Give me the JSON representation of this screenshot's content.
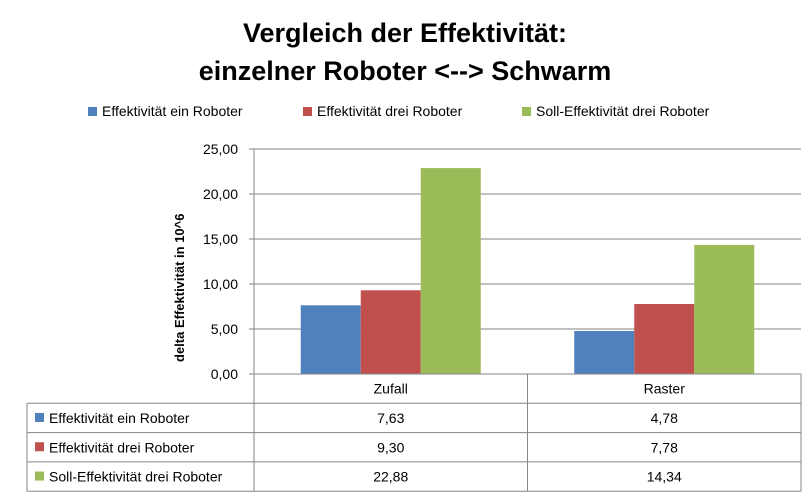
{
  "title_line1": "Vergleich der Effektivität:",
  "title_line2": "einzelner Roboter <--> Schwarm",
  "chart_data": {
    "type": "bar",
    "title": "Vergleich der Effektivität: einzelner Roboter <--> Schwarm",
    "xlabel": "",
    "ylabel": "delta Effektivität in 10^6",
    "categories": [
      "Zufall",
      "Raster"
    ],
    "series": [
      {
        "name": "Effektivität ein Roboter",
        "values": [
          7.63,
          4.78
        ],
        "value_labels": [
          "7,63",
          "4,78"
        ],
        "color": "#4F81BD"
      },
      {
        "name": "Effektivität drei Roboter",
        "values": [
          9.3,
          7.78
        ],
        "value_labels": [
          "9,30",
          "7,78"
        ],
        "color": "#C0504D"
      },
      {
        "name": "Soll-Effektivität drei Roboter",
        "values": [
          22.88,
          14.34
        ],
        "value_labels": [
          "22,88",
          "14,34"
        ],
        "color": "#9BBB59"
      }
    ],
    "ylim": [
      0,
      25
    ],
    "yticks": [
      0,
      5,
      10,
      15,
      20,
      25
    ],
    "ytick_labels": [
      "0,00",
      "5,00",
      "10,00",
      "15,00",
      "20,00",
      "25,00"
    ],
    "grid": true,
    "legend_placement": "top",
    "data_table": true
  }
}
